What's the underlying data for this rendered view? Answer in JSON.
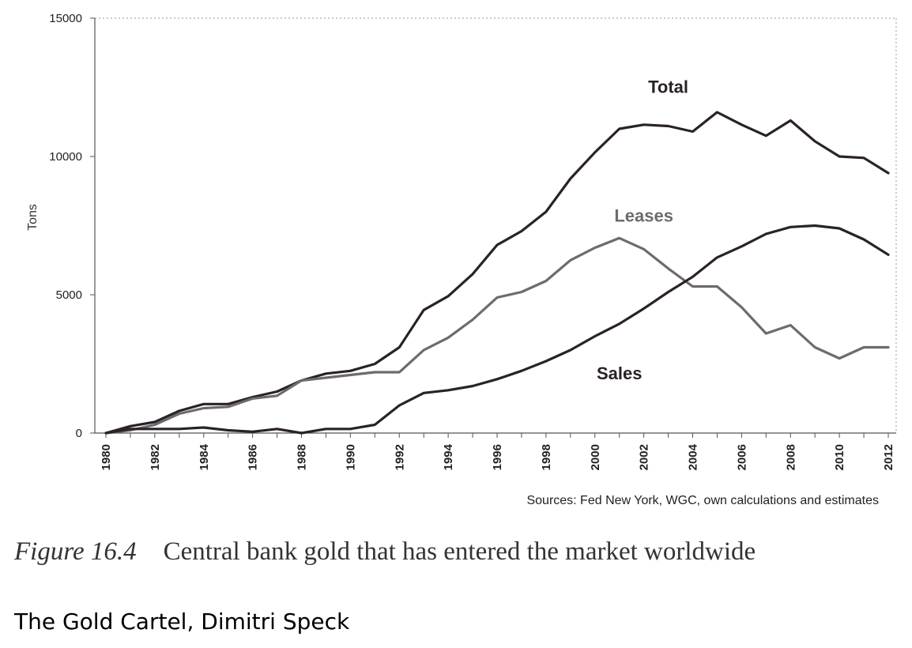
{
  "chart_data": {
    "type": "line",
    "ylabel": "Tons",
    "xlim": [
      1980,
      2012
    ],
    "ylim": [
      0,
      15000
    ],
    "yticks": [
      0,
      5000,
      10000,
      15000
    ],
    "xticks": [
      1980,
      1982,
      1984,
      1986,
      1988,
      1990,
      1992,
      1994,
      1996,
      1998,
      2000,
      2002,
      2004,
      2006,
      2008,
      2010,
      2012
    ],
    "grid": false,
    "x": [
      1980,
      1981,
      1982,
      1983,
      1984,
      1985,
      1986,
      1987,
      1988,
      1989,
      1990,
      1991,
      1992,
      1993,
      1994,
      1995,
      1996,
      1997,
      1998,
      1999,
      2000,
      2001,
      2002,
      2003,
      2004,
      2005,
      2006,
      2007,
      2008,
      2009,
      2010,
      2011,
      2012
    ],
    "series": [
      {
        "name": "Total",
        "color": "#2a2228",
        "values": [
          0,
          250,
          400,
          800,
          1050,
          1050,
          1300,
          1500,
          1900,
          2150,
          2250,
          2500,
          3100,
          4450,
          4950,
          5750,
          6800,
          7300,
          8000,
          9200,
          10150,
          11000,
          11150,
          11100,
          10900,
          11600,
          11150,
          10750,
          11300,
          10550,
          10000,
          9950,
          9400
        ]
      },
      {
        "name": "Leases",
        "color": "#6e6a6e",
        "values": [
          0,
          100,
          300,
          700,
          900,
          950,
          1250,
          1350,
          1900,
          2000,
          2100,
          2200,
          2200,
          3000,
          3450,
          4100,
          4900,
          5100,
          5500,
          6250,
          6700,
          7050,
          6650,
          5950,
          5300,
          5300,
          4550,
          3600,
          3900,
          3100,
          2700,
          3100,
          3100
        ]
      },
      {
        "name": "Sales",
        "color": "#2a2228",
        "values": [
          0,
          150,
          150,
          150,
          200,
          100,
          50,
          150,
          0,
          150,
          150,
          300,
          1000,
          1450,
          1550,
          1700,
          1950,
          2250,
          2600,
          3000,
          3500,
          3950,
          4500,
          5100,
          5650,
          6350,
          6750,
          7200,
          7450,
          7500,
          7400,
          7000,
          6450
        ]
      }
    ],
    "source": "Sources: Fed New York, WGC, own calculations and estimates"
  },
  "caption": {
    "figure_number": "Figure 16.4",
    "text": "Central bank gold that has entered the market worldwide"
  },
  "credit": "The Gold Cartel, Dimitri Speck"
}
